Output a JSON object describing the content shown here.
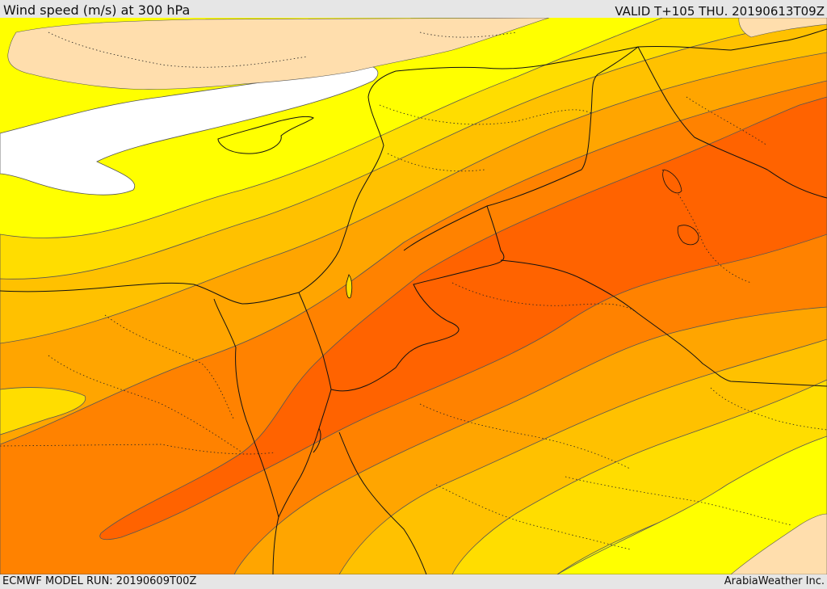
{
  "header": {
    "title": "Wind speed (m/s) at 300 hPa",
    "valid": "VALID T+105 THU. 20190613T09Z"
  },
  "footer": {
    "model_run": "ECMWF MODEL RUN: 20190609T00Z",
    "credit": "ArabiaWeather Inc."
  },
  "palette": {
    "band_0": "#ffffff",
    "band_1": "#ffff00",
    "band_2": "#ffdd00",
    "band_3": "#ffc100",
    "band_4": "#ffa500",
    "band_5": "#ff8200",
    "band_6": "#ff6300",
    "land_beyond": "#ffdead",
    "border_line": "#111111",
    "contour_line": "#555555"
  }
}
